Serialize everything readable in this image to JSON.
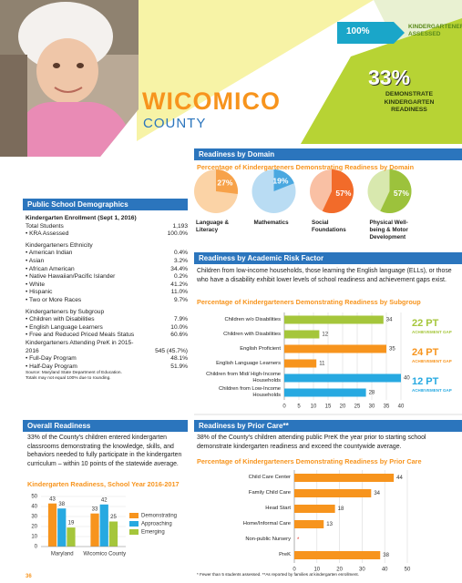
{
  "header": {
    "assessed_value": "100%",
    "assessed_label": "KINDERGARTENERS ASSESSED",
    "readiness_value": "33%",
    "readiness_label": "DEMONSTRATE KINDERGARTEN READINESS",
    "county": "WICOMICO",
    "county_sub": "COUNTY"
  },
  "demographics": {
    "title": "Public School Demographics",
    "rows": [
      [
        "Kindergarten Enrollment (Sept 1, 2016)"
      ],
      [
        "Total Students",
        "1,193"
      ],
      [
        "• KRA Assessed",
        "100.0%"
      ],
      [
        "Kindergarteners Ethnicity"
      ],
      [
        "• American Indian",
        "0.4%"
      ],
      [
        "• Asian",
        "3.2%"
      ],
      [
        "• African American",
        "34.4%"
      ],
      [
        "• Native Hawaiian/Pacific Islander",
        "0.2%"
      ],
      [
        "• White",
        "41.2%"
      ],
      [
        "• Hispanic",
        "11.0%"
      ],
      [
        "• Two or More Races",
        "9.7%"
      ],
      [
        "Kindergarteners by Subgroup"
      ],
      [
        "• Children with Disabilities",
        "7.9%"
      ],
      [
        "• English Language Learners",
        "10.0%"
      ],
      [
        "• Free and Reduced Priced Meals Status",
        "60.6%"
      ],
      [
        "Kindergarteners Attending PreK in 2015-2016",
        "545 (45.7%)"
      ],
      [
        "• Full-Day Program",
        "48.1%"
      ],
      [
        "• Half-Day Program",
        "51.9%"
      ]
    ],
    "source": [
      "Source: Maryland State Department of Education.",
      "Totals may not equal 100% due to rounding."
    ]
  },
  "chart_data": [
    {
      "type": "pie",
      "section": "Readiness by Domain",
      "title": "Percentage of Kindergarteners Demonstrating Readiness by Domain",
      "categories": [
        "Language & Literacy",
        "Mathematics",
        "Social Foundations",
        "Physical Well-being & Motor Development"
      ],
      "values": [
        27,
        19,
        57,
        57
      ],
      "value_labels": [
        "27%",
        "19%",
        "57%",
        "57%"
      ],
      "colors": [
        "#f7a24a",
        "#4aa8e0",
        "#f26b2a",
        "#9cc23c"
      ],
      "track_colors": [
        "#fbd3a6",
        "#b9dcf3",
        "#f9c0a4",
        "#d8e8ae"
      ]
    },
    {
      "type": "hbar",
      "section": "Readiness by Academic Risk Factor",
      "description": "Children from low-income households, those learning the English language (ELLs), or those who have a disability exhibit lower levels of school readiness and achievement gaps exist.",
      "title": "Percentage of Kindergarteners Demonstrating Readiness by Subgroup",
      "categories": [
        "Children w/o Disabilities",
        "Children with Disabilities",
        "English Proficient",
        "English Language Learners",
        "Children from Mid/ High-Income Households",
        "Children from Low-Income Households"
      ],
      "values": [
        34,
        12,
        35,
        11,
        40,
        28
      ],
      "colors": [
        "#a5c63b",
        "#a5c63b",
        "#f7941d",
        "#f7941d",
        "#27a9e1",
        "#27a9e1"
      ],
      "xlim": [
        0,
        40
      ],
      "xticks": [
        0,
        5,
        10,
        15,
        20,
        25,
        30,
        35,
        40
      ],
      "grid": true,
      "annotations": [
        {
          "label": "22 PT",
          "sublabel": "ACHIEVEMENT GAP",
          "color": "#a5c63b"
        },
        {
          "label": "24 PT",
          "sublabel": "ACHIEVEMENT GAP",
          "color": "#f7941d"
        },
        {
          "label": "12 PT",
          "sublabel": "ACHIEVEMENT GAP",
          "color": "#27a9e1"
        }
      ]
    },
    {
      "type": "grouped_bar",
      "section": "Overall Readiness",
      "description": "33% of the County's children entered kindergarten classrooms demonstrating the knowledge, skills, and behaviors needed to fully participate in the kindergarten curriculum – within 10 points of the statewide average.",
      "title": "Kindergarten Readiness, School Year 2016-2017",
      "categories": [
        "Maryland",
        "Wicomico County"
      ],
      "series": [
        {
          "name": "Demonstrating",
          "color": "#f7941d",
          "values": [
            43,
            33
          ]
        },
        {
          "name": "Approaching",
          "color": "#27a9e1",
          "values": [
            38,
            42
          ]
        },
        {
          "name": "Emerging",
          "color": "#a5c63b",
          "values": [
            19,
            25
          ]
        }
      ],
      "ylim": [
        0,
        50
      ],
      "yticks": [
        0,
        10,
        20,
        30,
        40,
        50
      ],
      "grid": true
    },
    {
      "type": "hbar",
      "section": "Readiness by Prior Care**",
      "description": "38% of the County's children attending public PreK the year prior to starting school demonstrate kindergarten readiness and exceed the countywide average.",
      "title": "Percentage of Kindergarteners Demonstrating Readiness by Prior Care",
      "categories": [
        "Child Care Center",
        "Family Child Care",
        "Head Start",
        "Home/Informal Care",
        "Non-public Nursery",
        "PreK"
      ],
      "values": [
        44,
        34,
        18,
        13,
        null,
        38
      ],
      "value_labels": [
        "44",
        "34",
        "18",
        "13",
        "*",
        "38"
      ],
      "color": "#f7941d",
      "xlim": [
        0,
        50
      ],
      "xticks": [
        0,
        10,
        20,
        30,
        40,
        50
      ],
      "grid": true,
      "footnote": "* Fewer than 5 students assessed. **As reported by families at kindergarten enrollment."
    }
  ],
  "footer": {
    "page": "36"
  }
}
